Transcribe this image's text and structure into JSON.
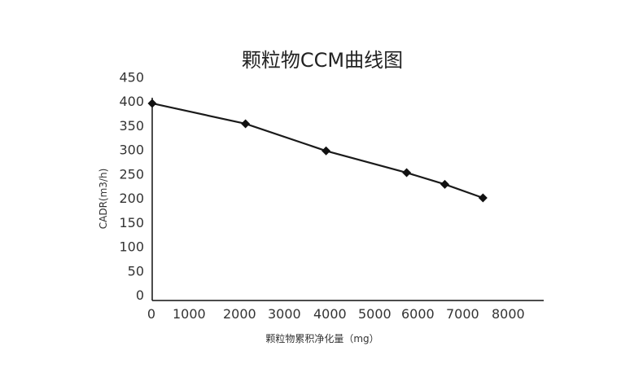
{
  "chart_data": {
    "type": "line",
    "title": "颗粒物CCM曲线图",
    "xlabel": "颗粒物累积净化量（mg）",
    "ylabel": "CADR(m3/h)",
    "x_ticks": [
      "0",
      "1000",
      "2000",
      "3000",
      "4000",
      "5000",
      "6000",
      "7000",
      "8000"
    ],
    "y_ticks": [
      "0",
      "50",
      "100",
      "150",
      "200",
      "250",
      "300",
      "350",
      "400",
      "450"
    ],
    "ylim": [
      0,
      450
    ],
    "grid": false,
    "series": [
      {
        "x": [
          0,
          2200,
          4100,
          6000,
          6900,
          7800
        ],
        "y": [
          395,
          353,
          297,
          252,
          228,
          200
        ]
      }
    ],
    "colors": {
      "line": "#1a1a1a",
      "marker": "#111111",
      "axis": "#111111"
    }
  }
}
